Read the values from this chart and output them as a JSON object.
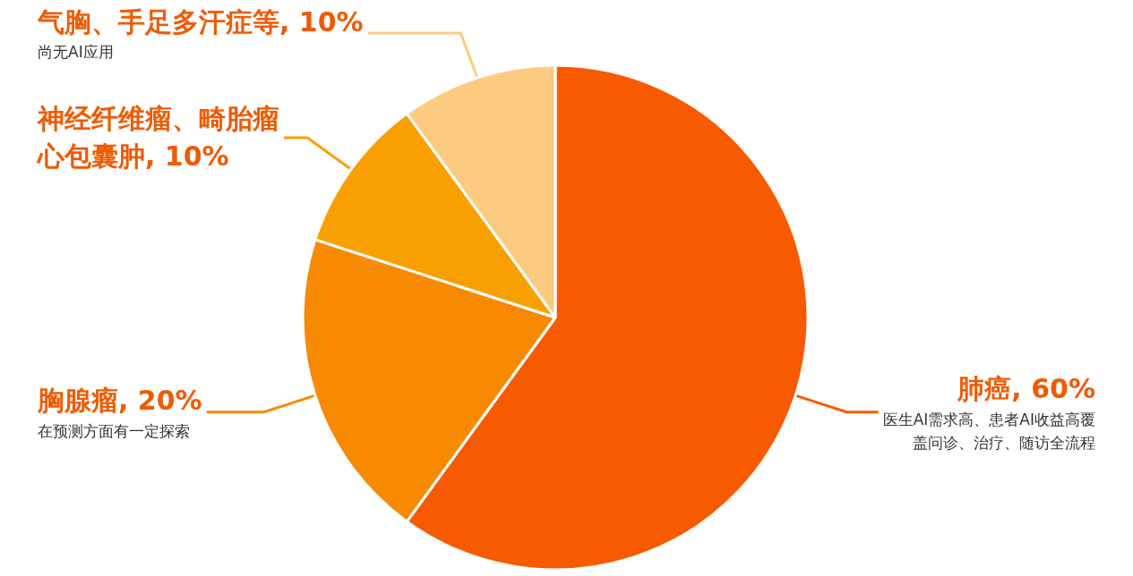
{
  "chart_data": {
    "type": "pie",
    "categories": [
      "肺癌",
      "胸腺瘤",
      "神经纤维瘤、畸胎瘤心包囊肿",
      "气胸、手足多汗症等"
    ],
    "values": [
      60,
      20,
      10,
      10
    ],
    "value_labels": [
      "60%",
      "20%",
      "10%",
      "10%"
    ],
    "colors": [
      "#f85a00",
      "#f78a00",
      "#f9a000",
      "#fdcb80"
    ],
    "annotations": [
      "医生AI需求高、患者AI收益高覆盖问诊、治疗、随访全流程",
      "在预测方面有一定探索",
      null,
      "尚无AI应用"
    ],
    "legend": false
  }
}
